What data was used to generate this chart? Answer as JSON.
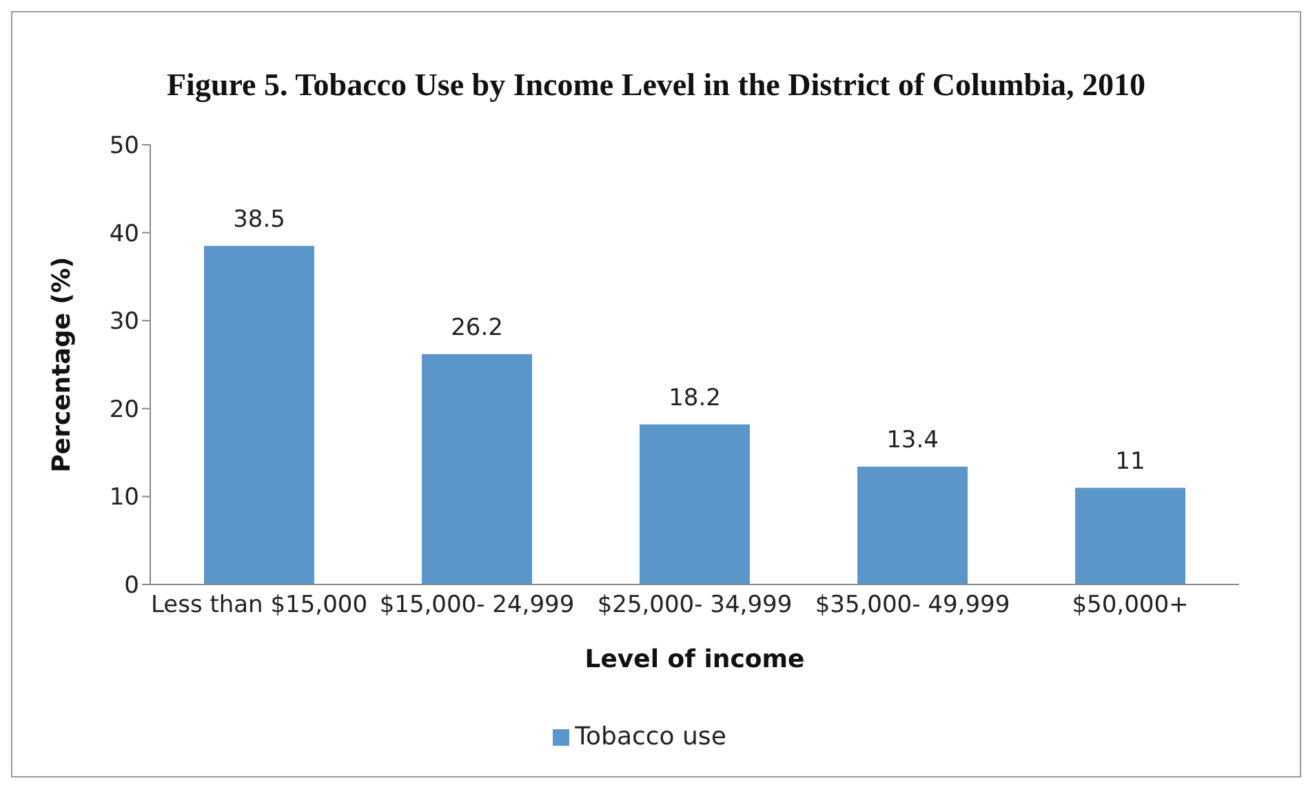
{
  "chart_data": {
    "type": "bar",
    "title": "Figure 5. Tobacco Use by Income Level in the District of Columbia, 2010",
    "xlabel": "Level of income",
    "ylabel": "Percentage (%)",
    "categories": [
      "Less than $15,000",
      "$15,000- 24,999",
      "$25,000- 34,999",
      "$35,000- 49,999",
      "$50,000+"
    ],
    "series": [
      {
        "name": "Tobacco use",
        "color": "#5b96cb",
        "values": [
          38.5,
          26.2,
          18.2,
          13.4,
          11
        ]
      }
    ],
    "ylim": [
      0,
      50
    ],
    "yticks": [
      0,
      10,
      20,
      30,
      40,
      50
    ],
    "grid": false,
    "legend": "bottom",
    "data_labels": true
  }
}
